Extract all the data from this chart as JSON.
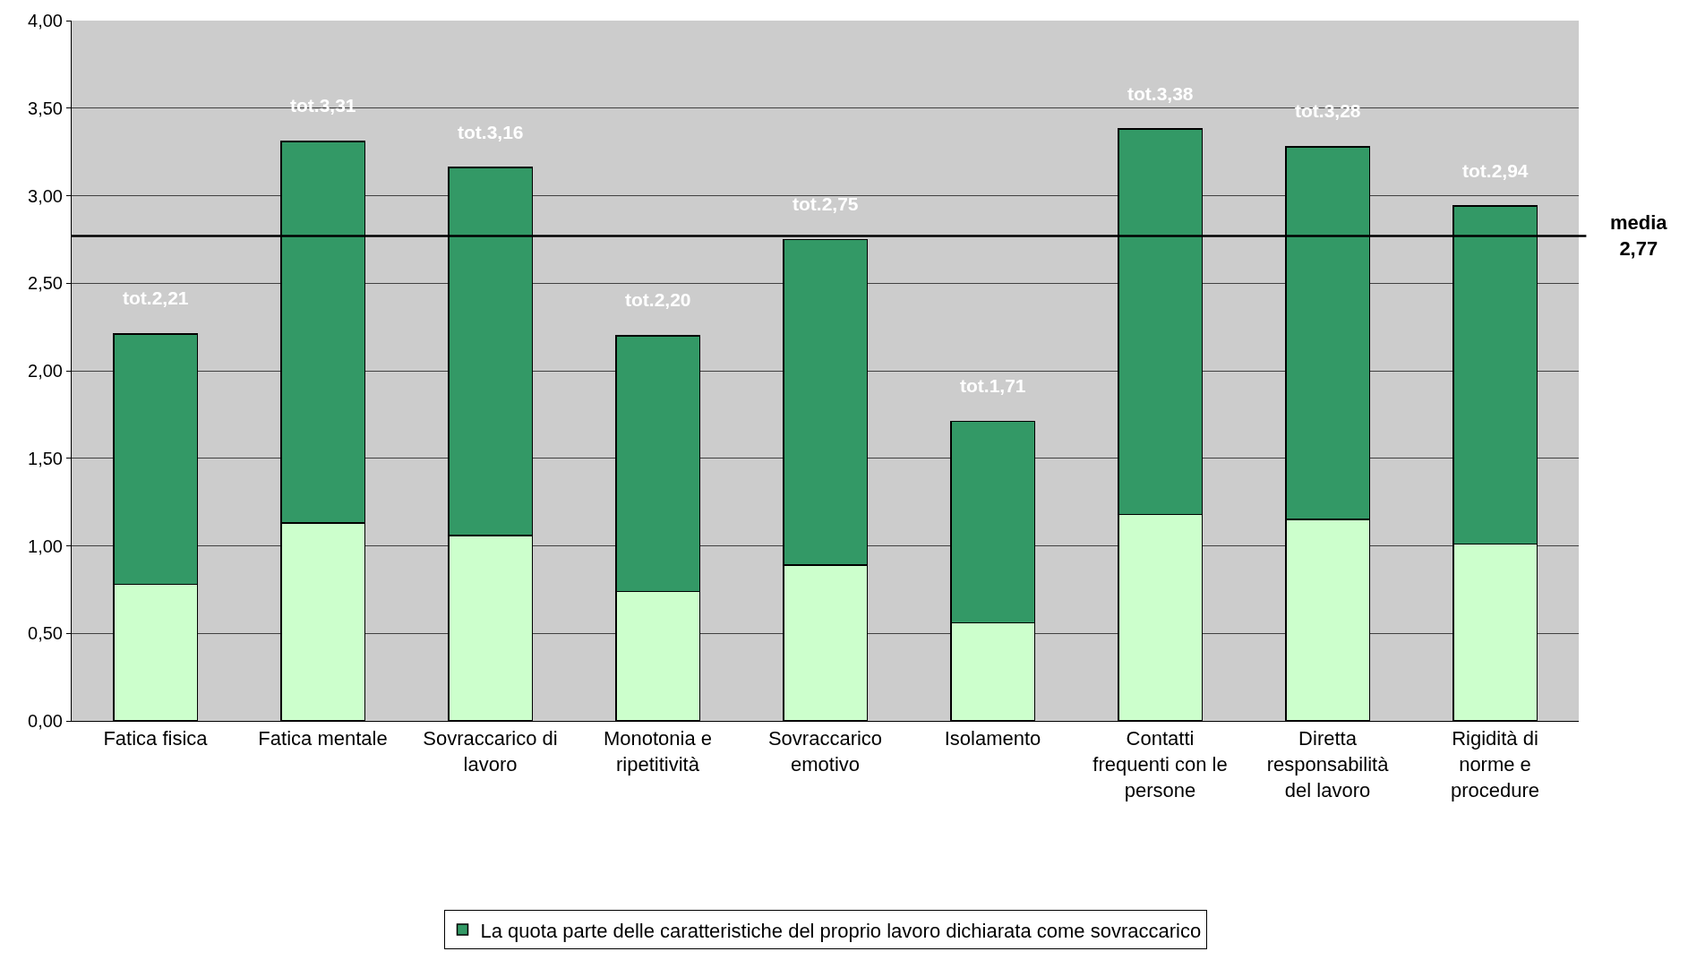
{
  "chart_data": {
    "type": "bar",
    "stacked": true,
    "categories": [
      "Fatica fisica",
      "Fatica mentale",
      "Sovraccarico di lavoro",
      "Monotonia e ripetitività",
      "Sovraccarico emotivo",
      "Isolamento",
      "Contatti frequenti con le persone",
      "Diretta responsabilità del lavoro",
      "Rigidità di norme e procedure"
    ],
    "series": [
      {
        "color": "#ccffcc",
        "values": [
          0.78,
          1.13,
          1.06,
          0.74,
          0.89,
          0.56,
          1.18,
          1.15,
          1.01
        ]
      },
      {
        "name": "La quota parte delle caratteristiche del proprio lavoro dichiarata come sovraccarico",
        "color": "#339966",
        "values": [
          1.43,
          2.18,
          2.1,
          1.46,
          1.86,
          1.15,
          2.2,
          2.13,
          1.93
        ]
      }
    ],
    "totals": [
      "tot.2,21",
      "tot.3,31",
      "tot.3,16",
      "tot.2,20",
      "tot.2,75",
      "tot.1,71",
      "tot.3,38",
      "tot.3,28",
      "tot.2,94"
    ],
    "ylim": [
      0,
      4
    ],
    "yticks": [
      {
        "value": 0,
        "label": "0,00"
      },
      {
        "value": 0.5,
        "label": "0,50"
      },
      {
        "value": 1,
        "label": "1,00"
      },
      {
        "value": 1.5,
        "label": "1,50"
      },
      {
        "value": 2,
        "label": "2,00"
      },
      {
        "value": 2.5,
        "label": "2,50"
      },
      {
        "value": 3,
        "label": "3,00"
      },
      {
        "value": 3.5,
        "label": "3,50"
      },
      {
        "value": 4,
        "label": "4,00"
      }
    ],
    "ref_lines": [
      {
        "axis": "y",
        "value": 2.77,
        "label": "media\n2,77",
        "color": "#000000"
      }
    ],
    "grid": "y",
    "legend": "bottom"
  }
}
